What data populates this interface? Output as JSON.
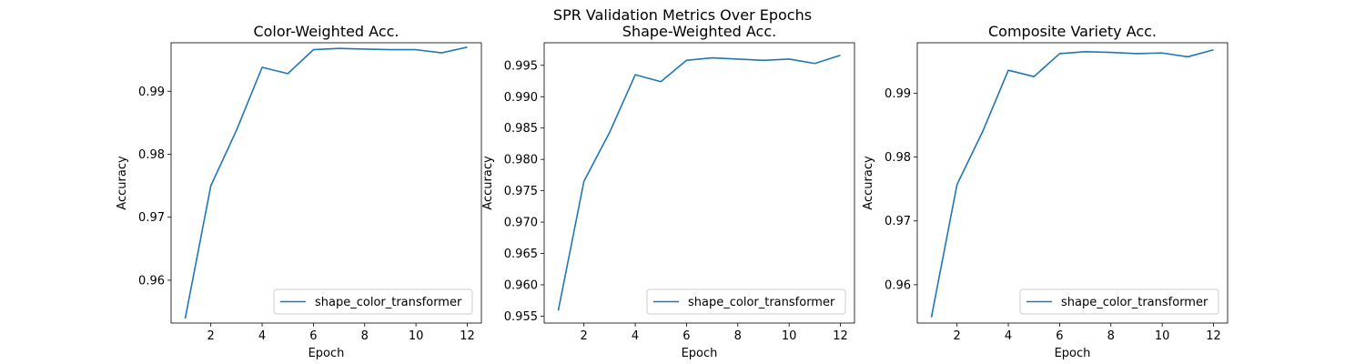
{
  "suptitle": "SPR Validation Metrics Over Epochs",
  "colors": {
    "line": "#1f77b4"
  },
  "chart_data": [
    {
      "type": "line",
      "title": "Color-Weighted Acc.",
      "xlabel": "Epoch",
      "ylabel": "Accuracy",
      "x": [
        1,
        2,
        3,
        4,
        5,
        6,
        7,
        8,
        9,
        10,
        11,
        12
      ],
      "series": [
        {
          "name": "shape_color_transformer",
          "values": [
            0.9539,
            0.975,
            0.9838,
            0.9938,
            0.9928,
            0.9966,
            0.9968,
            0.9967,
            0.9966,
            0.9966,
            0.9961,
            0.997
          ]
        }
      ],
      "xlim": [
        0.45,
        12.55
      ],
      "ylim": [
        0.9532,
        0.9977
      ],
      "xticks": [
        2,
        4,
        6,
        8,
        10,
        12
      ],
      "yticks": [
        0.96,
        0.97,
        0.98,
        0.99
      ],
      "ytick_labels": [
        "0.96",
        "0.97",
        "0.98",
        "0.99"
      ],
      "legend": "lower-right",
      "grid": false
    },
    {
      "type": "line",
      "title": "Shape-Weighted Acc.",
      "xlabel": "Epoch",
      "ylabel": "Accuracy",
      "x": [
        1,
        2,
        3,
        4,
        5,
        6,
        7,
        8,
        9,
        10,
        11,
        12
      ],
      "series": [
        {
          "name": "shape_color_transformer",
          "values": [
            0.9559,
            0.9765,
            0.9843,
            0.9935,
            0.9924,
            0.9958,
            0.9962,
            0.996,
            0.9958,
            0.996,
            0.9953,
            0.9966
          ]
        }
      ],
      "xlim": [
        0.45,
        12.55
      ],
      "ylim": [
        0.9539,
        0.9986
      ],
      "xticks": [
        2,
        4,
        6,
        8,
        10,
        12
      ],
      "yticks": [
        0.955,
        0.96,
        0.965,
        0.97,
        0.975,
        0.98,
        0.985,
        0.99,
        0.995
      ],
      "ytick_labels": [
        "0.955",
        "0.960",
        "0.965",
        "0.970",
        "0.975",
        "0.980",
        "0.985",
        "0.990",
        "0.995"
      ],
      "legend": "lower-right",
      "grid": false
    },
    {
      "type": "line",
      "title": "Composite Variety Acc.",
      "xlabel": "Epoch",
      "ylabel": "Accuracy",
      "x": [
        1,
        2,
        3,
        4,
        5,
        6,
        7,
        8,
        9,
        10,
        11,
        12
      ],
      "series": [
        {
          "name": "shape_color_transformer",
          "values": [
            0.9549,
            0.9757,
            0.984,
            0.9936,
            0.9926,
            0.9962,
            0.9965,
            0.9964,
            0.9962,
            0.9963,
            0.9957,
            0.9968
          ]
        }
      ],
      "xlim": [
        0.45,
        12.55
      ],
      "ylim": [
        0.954,
        0.9979
      ],
      "xticks": [
        2,
        4,
        6,
        8,
        10,
        12
      ],
      "yticks": [
        0.96,
        0.97,
        0.98,
        0.99
      ],
      "ytick_labels": [
        "0.96",
        "0.97",
        "0.98",
        "0.99"
      ],
      "legend": "lower-right",
      "grid": false
    }
  ]
}
